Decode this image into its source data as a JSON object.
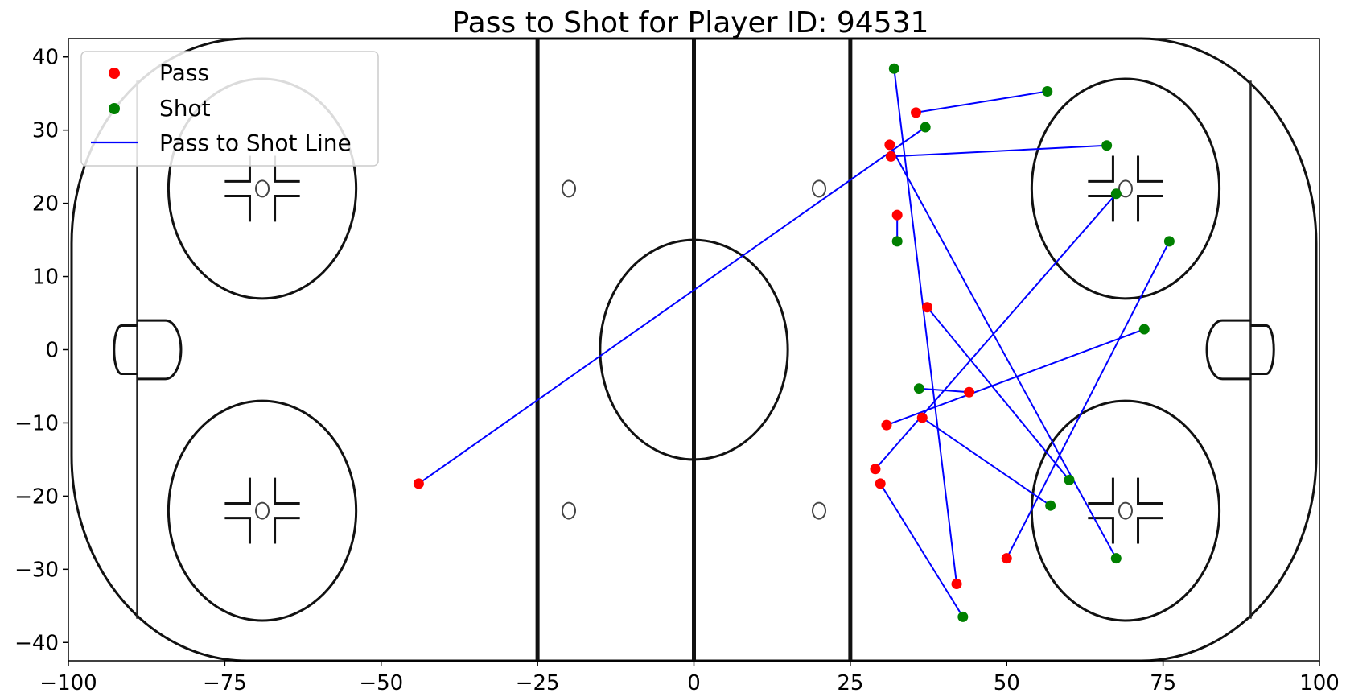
{
  "chart_data": {
    "type": "scatter",
    "title": "Pass to Shot for Player ID: 94531",
    "xlabel": "",
    "ylabel": "",
    "xlim": [
      -100,
      100
    ],
    "ylim": [
      -42.5,
      42.5
    ],
    "x_ticks": [
      -100,
      -75,
      -50,
      -25,
      0,
      25,
      50,
      75,
      100
    ],
    "x_tick_labels": [
      "−100",
      "−75",
      "−50",
      "−25",
      "0",
      "25",
      "50",
      "75",
      "100"
    ],
    "y_ticks": [
      40,
      30,
      20,
      10,
      0,
      -10,
      -20,
      -30,
      -40
    ],
    "y_tick_labels": [
      "40",
      "30",
      "20",
      "10",
      "0",
      "−10",
      "−20",
      "−30",
      "−40"
    ],
    "grid": false,
    "legend_position": "top-left",
    "legend": [
      {
        "label": "Pass",
        "marker": "dot",
        "color": "#ff0000"
      },
      {
        "label": "Shot",
        "marker": "dot",
        "color": "#008000"
      },
      {
        "label": "Pass to Shot Line",
        "marker": "line",
        "color": "#0000ff"
      }
    ],
    "colors": {
      "pass": "#ff0000",
      "shot": "#008000",
      "line": "#0000ff"
    },
    "pairs": [
      {
        "pass": [
          -44,
          -18.3
        ],
        "shot": [
          37,
          30.4
        ]
      },
      {
        "pass": [
          35.5,
          32.4
        ],
        "shot": [
          56.5,
          35.3
        ]
      },
      {
        "pass": [
          31.3,
          28.0
        ],
        "shot": [
          67.5,
          -28.5
        ]
      },
      {
        "pass": [
          31.5,
          26.4
        ],
        "shot": [
          66,
          27.9
        ]
      },
      {
        "pass": [
          32.5,
          18.4
        ],
        "shot": [
          32.5,
          14.8
        ]
      },
      {
        "pass": [
          37.3,
          5.8
        ],
        "shot": [
          60,
          -17.8
        ]
      },
      {
        "pass": [
          44,
          -5.8
        ],
        "shot": [
          36,
          -5.3
        ]
      },
      {
        "pass": [
          30.8,
          -10.3
        ],
        "shot": [
          72,
          2.8
        ]
      },
      {
        "pass": [
          36.5,
          -9.3
        ],
        "shot": [
          57,
          -21.3
        ]
      },
      {
        "pass": [
          29,
          -16.3
        ],
        "shot": [
          67.5,
          21.3
        ]
      },
      {
        "pass": [
          29.8,
          -18.3
        ],
        "shot": [
          43,
          -36.5
        ]
      },
      {
        "pass": [
          42,
          -32
        ],
        "shot": [
          32,
          38.4
        ]
      },
      {
        "pass": [
          50,
          -28.5
        ],
        "shot": [
          76,
          14.8
        ]
      }
    ]
  }
}
